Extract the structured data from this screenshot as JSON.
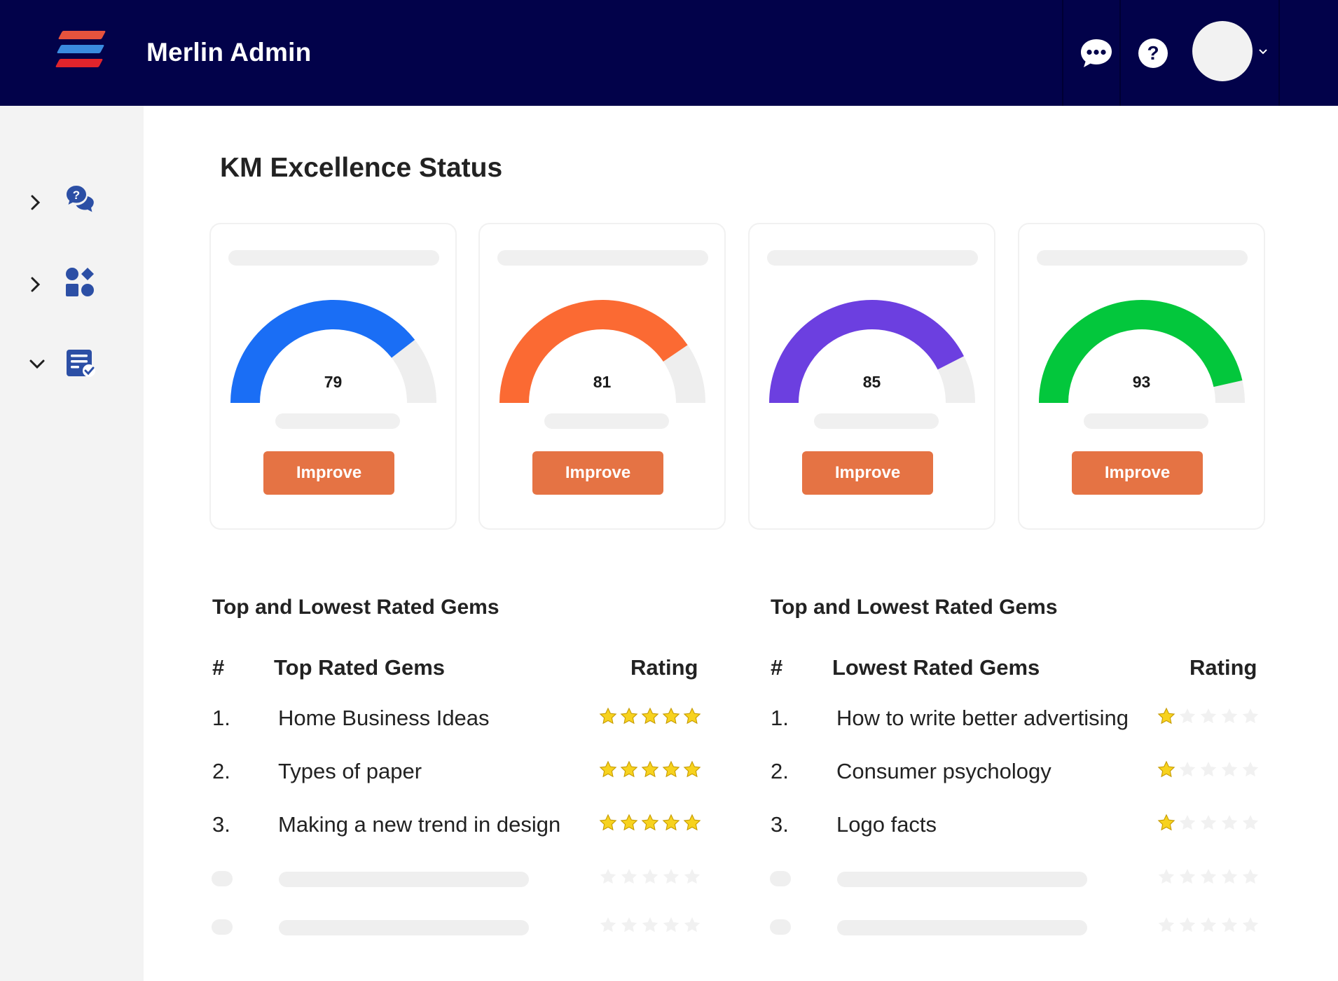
{
  "header": {
    "app_title": "Merlin Admin",
    "brand_colors": [
      "#e5533d",
      "#3a8be0",
      "#e0242c"
    ],
    "icons": [
      "chat-bubble-icon",
      "help-icon",
      "chevron-down-icon"
    ]
  },
  "sidebar": {
    "items": [
      {
        "icon": "question-chat-icon",
        "expanded": false
      },
      {
        "icon": "apps-shapes-icon",
        "expanded": false
      },
      {
        "icon": "checklist-icon",
        "expanded": true
      }
    ]
  },
  "main": {
    "title": "KM Excellence Status",
    "cards": [
      {
        "value": "79",
        "color": "#1a6ef5",
        "button": "Improve"
      },
      {
        "value": "81",
        "color": "#fb6a33",
        "button": "Improve"
      },
      {
        "value": "85",
        "color": "#6c3fe0",
        "button": "Improve"
      },
      {
        "value": "93",
        "color": "#03c73c",
        "button": "Improve"
      }
    ],
    "top_section": {
      "title": "Top and Lowest Rated Gems",
      "col_num": "#",
      "col_name": "Top Rated Gems",
      "col_rating": "Rating",
      "rows": [
        {
          "num": "1.",
          "name": "Home Business Ideas",
          "rating": 5
        },
        {
          "num": "2.",
          "name": "Types of paper",
          "rating": 5
        },
        {
          "num": "3.",
          "name": "Making a new trend in design",
          "rating": 5
        }
      ]
    },
    "low_section": {
      "title": "Top and Lowest Rated Gems",
      "col_num": "#",
      "col_name": "Lowest Rated Gems",
      "col_rating": "Rating",
      "rows": [
        {
          "num": "1.",
          "name": "How to write better advertising",
          "rating": 1
        },
        {
          "num": "2.",
          "name": "Consumer psychology",
          "rating": 1
        },
        {
          "num": "3.",
          "name": "Logo facts",
          "rating": 1
        }
      ]
    },
    "star_colors": {
      "filled": "#f7d21e",
      "filled_outline": "#c59a00",
      "empty": "#f1f1f1"
    }
  }
}
